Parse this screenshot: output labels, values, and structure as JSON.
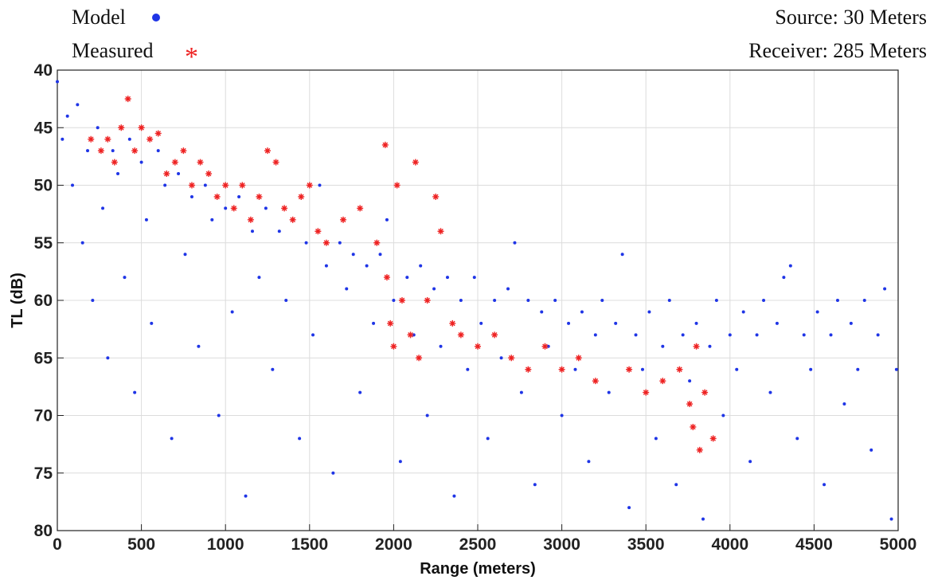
{
  "chart_data": {
    "type": "scatter",
    "xlabel": "Range (meters)",
    "ylabel": "TL (dB)",
    "annotations": [
      "Source: 30 Meters",
      "Receiver: 285 Meters"
    ],
    "xlim": [
      0,
      5000
    ],
    "xticks": [
      0,
      500,
      1000,
      1500,
      2000,
      2500,
      3000,
      3500,
      4000,
      4500,
      5000
    ],
    "ylim": [
      40,
      80
    ],
    "yticks": [
      40,
      45,
      50,
      55,
      60,
      65,
      70,
      75,
      80
    ],
    "y_inverted": true,
    "grid": true,
    "legend": "top-left",
    "series": [
      {
        "name": "Model",
        "color": "#1f35e6",
        "marker": "dot",
        "x": [
          0,
          30,
          60,
          90,
          120,
          150,
          180,
          210,
          240,
          270,
          300,
          330,
          360,
          400,
          430,
          460,
          500,
          530,
          560,
          600,
          640,
          680,
          720,
          760,
          800,
          840,
          880,
          920,
          960,
          1000,
          1040,
          1080,
          1120,
          1160,
          1200,
          1240,
          1280,
          1320,
          1360,
          1400,
          1440,
          1480,
          1520,
          1560,
          1600,
          1640,
          1680,
          1720,
          1760,
          1800,
          1840,
          1880,
          1920,
          1960,
          2000,
          2040,
          2080,
          2120,
          2160,
          2200,
          2240,
          2280,
          2320,
          2360,
          2400,
          2440,
          2480,
          2520,
          2560,
          2600,
          2640,
          2680,
          2720,
          2760,
          2800,
          2840,
          2880,
          2920,
          2960,
          3000,
          3040,
          3080,
          3120,
          3160,
          3200,
          3240,
          3280,
          3320,
          3360,
          3400,
          3440,
          3480,
          3520,
          3560,
          3600,
          3640,
          3680,
          3720,
          3760,
          3800,
          3840,
          3880,
          3920,
          3960,
          4000,
          4040,
          4080,
          4120,
          4160,
          4200,
          4240,
          4280,
          4320,
          4360,
          4400,
          4440,
          4480,
          4520,
          4560,
          4600,
          4640,
          4680,
          4720,
          4760,
          4800,
          4840,
          4880,
          4920,
          4960,
          4990
        ],
        "values": [
          41,
          46,
          44,
          50,
          43,
          55,
          47,
          60,
          45,
          52,
          65,
          47,
          49,
          58,
          46,
          68,
          48,
          53,
          62,
          47,
          50,
          72,
          49,
          56,
          51,
          64,
          50,
          53,
          70,
          52,
          61,
          51,
          77,
          54,
          58,
          52,
          66,
          54,
          60,
          53,
          72,
          55,
          63,
          50,
          57,
          75,
          55,
          59,
          56,
          68,
          57,
          62,
          56,
          53,
          60,
          74,
          58,
          63,
          57,
          70,
          59,
          64,
          58,
          77,
          60,
          66,
          58,
          62,
          72,
          60,
          65,
          59,
          55,
          68,
          60,
          76,
          61,
          64,
          60,
          70,
          62,
          66,
          61,
          74,
          63,
          60,
          68,
          62,
          56,
          78,
          63,
          66,
          61,
          72,
          64,
          60,
          76,
          63,
          67,
          62,
          79,
          64,
          60,
          70,
          63,
          66,
          61,
          74,
          63,
          60,
          68,
          62,
          58,
          57,
          72,
          63,
          66,
          61,
          76,
          63,
          60,
          69,
          62,
          66,
          60,
          73,
          63,
          59,
          79,
          66
        ]
      },
      {
        "name": "Measured",
        "color": "#ee2222",
        "marker": "asterisk",
        "x": [
          200,
          260,
          300,
          340,
          380,
          420,
          460,
          500,
          550,
          600,
          650,
          700,
          750,
          800,
          850,
          900,
          950,
          1000,
          1050,
          1100,
          1150,
          1200,
          1250,
          1300,
          1350,
          1400,
          1450,
          1500,
          1550,
          1600,
          1700,
          1800,
          1900,
          1950,
          1960,
          1980,
          2000,
          2020,
          2050,
          2100,
          2130,
          2150,
          2200,
          2250,
          2280,
          2350,
          2400,
          2500,
          2600,
          2700,
          2800,
          2900,
          3000,
          3100,
          3200,
          3400,
          3500,
          3600,
          3700,
          3760,
          3780,
          3800,
          3820,
          3850,
          3900
        ],
        "values": [
          46,
          47,
          46,
          48,
          45,
          42.5,
          47,
          45,
          46,
          45.5,
          49,
          48,
          47,
          50,
          48,
          49,
          51,
          50,
          52,
          50,
          53,
          51,
          47,
          48,
          52,
          53,
          51,
          50,
          54,
          55,
          53,
          52,
          55,
          46.5,
          58,
          62,
          64,
          50,
          60,
          63,
          48,
          65,
          60,
          51,
          54,
          62,
          63,
          64,
          63,
          65,
          66,
          64,
          66,
          65,
          67,
          66,
          68,
          67,
          66,
          69,
          71,
          64,
          73,
          68,
          72
        ]
      }
    ]
  }
}
